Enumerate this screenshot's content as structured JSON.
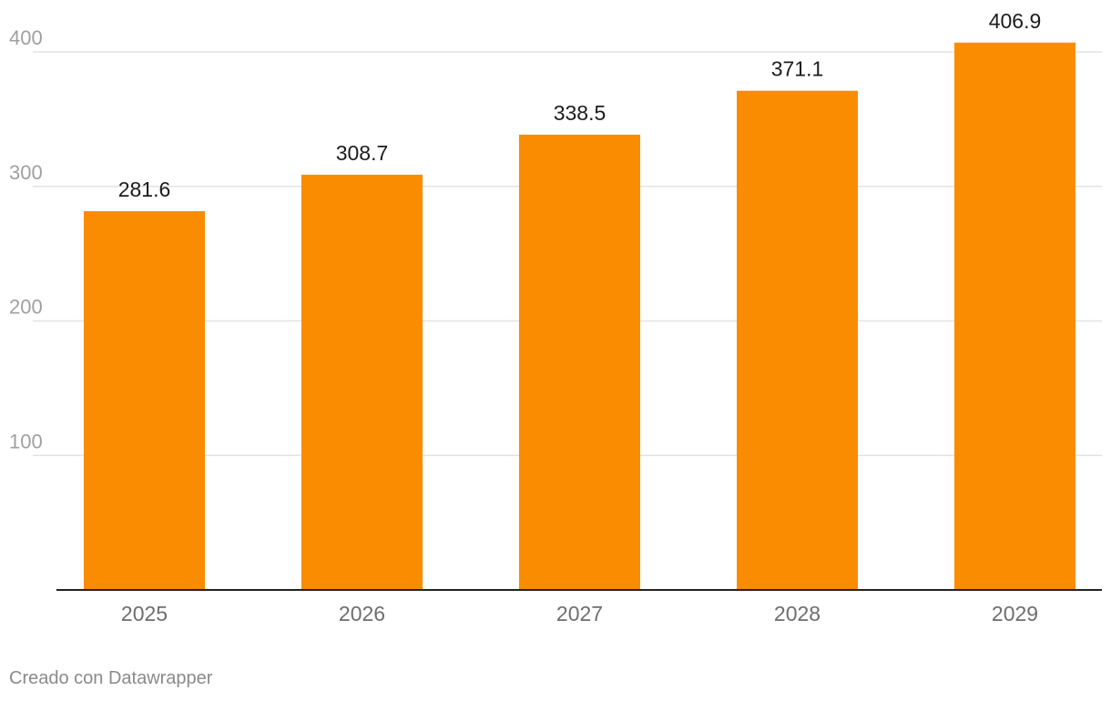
{
  "chart_data": {
    "type": "bar",
    "categories": [
      "2025",
      "2026",
      "2027",
      "2028",
      "2029"
    ],
    "values": [
      281.6,
      308.7,
      338.5,
      371.1,
      406.9
    ],
    "value_labels": [
      "281.6",
      "308.7",
      "338.5",
      "371.1",
      "406.9"
    ],
    "title": "",
    "xlabel": "",
    "ylabel": "",
    "ylim": [
      0,
      400
    ],
    "yticks": [
      100,
      200,
      300,
      400
    ],
    "grid": true,
    "bar_color": "#f98c00"
  },
  "footer": {
    "credit": "Creado con Datawrapper"
  }
}
